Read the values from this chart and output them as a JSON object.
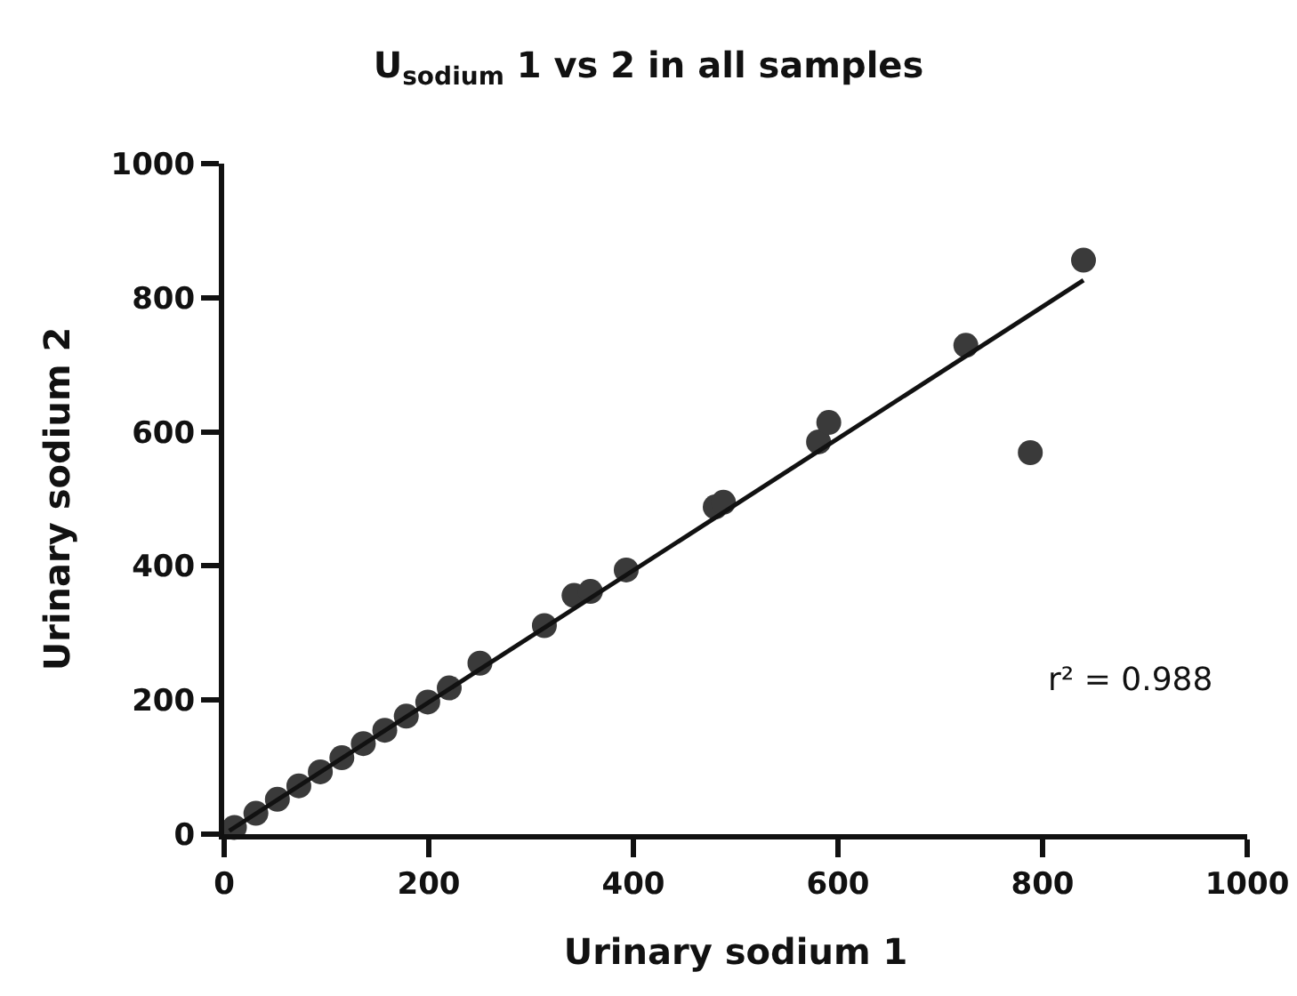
{
  "chart_data": {
    "type": "scatter",
    "title": "U$_{sodium}$ 1 vs 2 in all samples",
    "xlabel": "Urinary sodium 1",
    "ylabel": "Urinary sodium 2",
    "xlim": [
      0,
      1000
    ],
    "ylim": [
      0,
      1000
    ],
    "xticks": [
      0,
      200,
      400,
      600,
      800,
      1000
    ],
    "yticks": [
      0,
      200,
      400,
      600,
      800,
      1000
    ],
    "grid": false,
    "marker": "circle",
    "annotations": [
      "r² = 0.988"
    ],
    "series": [
      {
        "color": "#3a3a3a",
        "x": [
          10,
          31,
          52,
          73,
          94,
          115,
          136,
          157,
          178,
          199,
          220,
          250,
          313,
          342,
          358,
          393,
          480,
          488,
          581,
          591,
          725,
          788,
          840
        ],
        "values": [
          10,
          31,
          52,
          72,
          93,
          114,
          135,
          155,
          176,
          197,
          218,
          255,
          311,
          356,
          362,
          394,
          488,
          495,
          585,
          614,
          729,
          569,
          856
        ]
      },
      {
        "type": "line",
        "color": "#111111",
        "marker": "none",
        "line_style": "solid",
        "x": [
          5,
          840
        ],
        "values": [
          5,
          826
        ]
      }
    ]
  }
}
